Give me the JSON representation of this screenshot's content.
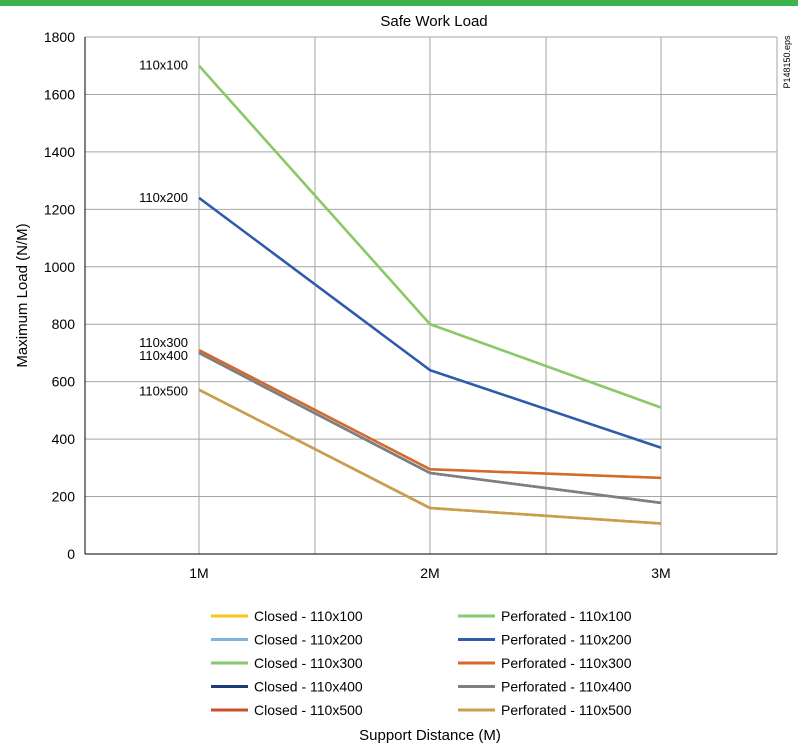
{
  "chart_data": {
    "type": "line",
    "title": "Safe Work Load",
    "xlabel": "Support Distance (M)",
    "ylabel": "Maximum Load (N/M)",
    "side_note": "P148150.eps",
    "categories": [
      "1M",
      "2M",
      "3M"
    ],
    "ylim": [
      0,
      1800
    ],
    "yticks": [
      0,
      200,
      400,
      600,
      800,
      1000,
      1200,
      1400,
      1600,
      1800
    ],
    "grid": true,
    "legend_position": "bottom",
    "series": [
      {
        "name": "Closed - 110x100",
        "color": "#f5c518",
        "values": [
          1700,
          800,
          510
        ]
      },
      {
        "name": "Closed - 110x200",
        "color": "#7fb3de",
        "values": [
          1240,
          640,
          370
        ]
      },
      {
        "name": "Closed - 110x300",
        "color": "#86c96f",
        "values": [
          710,
          295,
          265
        ]
      },
      {
        "name": "Closed - 110x400",
        "color": "#1f3b73",
        "values": [
          700,
          282,
          178
        ]
      },
      {
        "name": "Closed - 110x500",
        "color": "#c8512a",
        "values": [
          572,
          160,
          106
        ]
      },
      {
        "name": "Perforated - 110x100",
        "color": "#86c96f",
        "values": [
          1700,
          800,
          510
        ]
      },
      {
        "name": "Perforated - 110x200",
        "color": "#2f5ba8",
        "values": [
          1240,
          640,
          370
        ]
      },
      {
        "name": "Perforated - 110x300",
        "color": "#d9662b",
        "values": [
          710,
          295,
          265
        ]
      },
      {
        "name": "Perforated - 110x400",
        "color": "#7f7f7f",
        "values": [
          700,
          282,
          178
        ]
      },
      {
        "name": "Perforated - 110x500",
        "color": "#c9a04a",
        "values": [
          572,
          160,
          106
        ]
      }
    ],
    "annotations": [
      {
        "text": "110x100",
        "at": "1M",
        "value": 1700
      },
      {
        "text": "110x200",
        "at": "1M",
        "value": 1240
      },
      {
        "text": "110x300",
        "at": "1M",
        "value": 735
      },
      {
        "text": "110x400",
        "at": "1M",
        "value": 690
      },
      {
        "text": "110x500",
        "at": "1M",
        "value": 565
      }
    ]
  },
  "theme": {
    "top_bar_color": "#3cb44a",
    "grid_color": "#a6a6a6",
    "axis_color": "#000000"
  }
}
